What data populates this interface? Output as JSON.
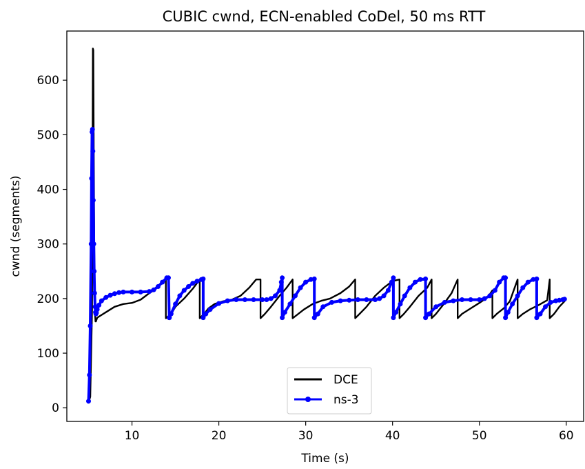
{
  "chart_data": {
    "type": "line",
    "title": "CUBIC cwnd, ECN-enabled CoDel, 50 ms RTT",
    "xlabel": "Time (s)",
    "ylabel": "cwnd (segments)",
    "xlim": [
      2.5,
      62.0
    ],
    "ylim": [
      -25,
      690
    ],
    "xticks": [
      10,
      20,
      30,
      40,
      50,
      60
    ],
    "yticks": [
      0,
      100,
      200,
      300,
      400,
      500,
      600
    ],
    "grid": false,
    "legend_position": "bottom-center",
    "series": [
      {
        "name": "DCE",
        "color": "#000000",
        "marker": "none",
        "x": [
          5.0,
          5.2,
          5.4,
          5.5,
          5.55,
          5.6,
          5.7,
          5.75,
          5.8,
          5.85,
          6.0,
          6.5,
          7.0,
          8.0,
          9.0,
          10.0,
          11.0,
          12.0,
          12.5,
          13.0,
          13.5,
          13.9,
          13.9,
          14.5,
          15.0,
          16.0,
          17.0,
          17.8,
          17.8,
          18.3,
          18.8,
          19.5,
          20.5,
          21.5,
          22.5,
          23.5,
          24.3,
          24.8,
          24.8,
          25.3,
          26.0,
          27.0,
          27.8,
          28.5,
          28.5,
          29.0,
          29.8,
          30.8,
          31.8,
          32.8,
          34.0,
          35.0,
          35.7,
          35.7,
          36.2,
          37.0,
          38.0,
          39.0,
          40.0,
          40.8,
          40.8,
          41.3,
          42.0,
          43.0,
          44.0,
          44.5,
          44.5,
          45.0,
          45.8,
          46.8,
          47.5,
          47.5,
          48.0,
          49.0,
          50.0,
          51.0,
          51.5,
          51.5,
          52.0,
          52.8,
          53.5,
          54.4,
          54.4,
          55.0,
          55.8,
          56.8,
          57.8,
          58.1,
          58.1,
          58.6,
          59.2,
          59.8
        ],
        "y": [
          10,
          20,
          180,
          658,
          655,
          460,
          200,
          170,
          158,
          158,
          165,
          170,
          175,
          185,
          190,
          192,
          198,
          210,
          215,
          222,
          230,
          235,
          164,
          172,
          185,
          200,
          218,
          235,
          164,
          172,
          182,
          190,
          195,
          198,
          205,
          220,
          235,
          235,
          164,
          172,
          185,
          205,
          220,
          235,
          164,
          170,
          180,
          190,
          196,
          200,
          210,
          222,
          235,
          164,
          172,
          185,
          205,
          220,
          232,
          235,
          164,
          172,
          185,
          205,
          220,
          235,
          164,
          172,
          188,
          210,
          235,
          164,
          172,
          182,
          192,
          203,
          215,
          164,
          172,
          182,
          195,
          235,
          164,
          172,
          180,
          188,
          197,
          235,
          164,
          172,
          185,
          195
        ]
      },
      {
        "name": "ns-3",
        "color": "#0000ff",
        "marker": "dot",
        "x": [
          5.0,
          5.1,
          5.2,
          5.3,
          5.35,
          5.4,
          5.45,
          5.5,
          5.55,
          5.6,
          5.65,
          5.7,
          5.75,
          5.8,
          5.85,
          5.9,
          6.0,
          6.2,
          6.5,
          7.0,
          7.5,
          8.0,
          8.5,
          9.0,
          10.0,
          11.0,
          12.0,
          12.5,
          13.0,
          13.5,
          14.0,
          14.2,
          14.3,
          14.3,
          14.5,
          15.0,
          15.5,
          16.0,
          16.5,
          17.0,
          17.5,
          18.0,
          18.2,
          18.2,
          18.5,
          19.0,
          20.0,
          21.0,
          22.0,
          23.0,
          24.0,
          25.0,
          25.5,
          26.0,
          26.5,
          27.0,
          27.2,
          27.3,
          27.3,
          27.6,
          28.2,
          28.8,
          29.4,
          30.0,
          30.6,
          31.0,
          31.0,
          31.4,
          32.0,
          33.0,
          34.0,
          35.0,
          36.0,
          37.0,
          38.0,
          38.5,
          39.0,
          39.5,
          39.9,
          40.1,
          40.1,
          40.4,
          40.9,
          41.4,
          42.0,
          42.6,
          43.2,
          43.8,
          43.8,
          44.2,
          45.0,
          46.0,
          47.0,
          48.0,
          49.0,
          50.0,
          50.6,
          51.2,
          51.8,
          52.3,
          52.8,
          53.0,
          53.0,
          53.3,
          53.8,
          54.4,
          55.0,
          55.6,
          56.2,
          56.6,
          56.6,
          57.0,
          57.6,
          58.2,
          58.8,
          59.2,
          59.6,
          59.8
        ],
        "y": [
          12,
          60,
          150,
          300,
          420,
          505,
          510,
          470,
          380,
          300,
          250,
          210,
          185,
          175,
          172,
          174,
          180,
          188,
          196,
          202,
          206,
          209,
          211,
          212,
          212,
          212,
          213,
          216,
          222,
          230,
          238,
          238,
          165,
          165,
          172,
          190,
          205,
          215,
          222,
          228,
          232,
          235,
          236,
          165,
          172,
          180,
          191,
          196,
          198,
          198,
          198,
          198,
          198,
          200,
          205,
          215,
          230,
          238,
          165,
          175,
          190,
          205,
          220,
          230,
          235,
          236,
          165,
          172,
          185,
          193,
          196,
          197,
          198,
          198,
          198,
          200,
          205,
          215,
          230,
          238,
          165,
          175,
          190,
          205,
          220,
          230,
          235,
          236,
          165,
          172,
          185,
          193,
          196,
          198,
          198,
          198,
          200,
          205,
          215,
          230,
          238,
          238,
          165,
          175,
          190,
          205,
          220,
          230,
          235,
          236,
          165,
          172,
          185,
          193,
          196,
          197,
          198,
          199
        ]
      }
    ]
  }
}
